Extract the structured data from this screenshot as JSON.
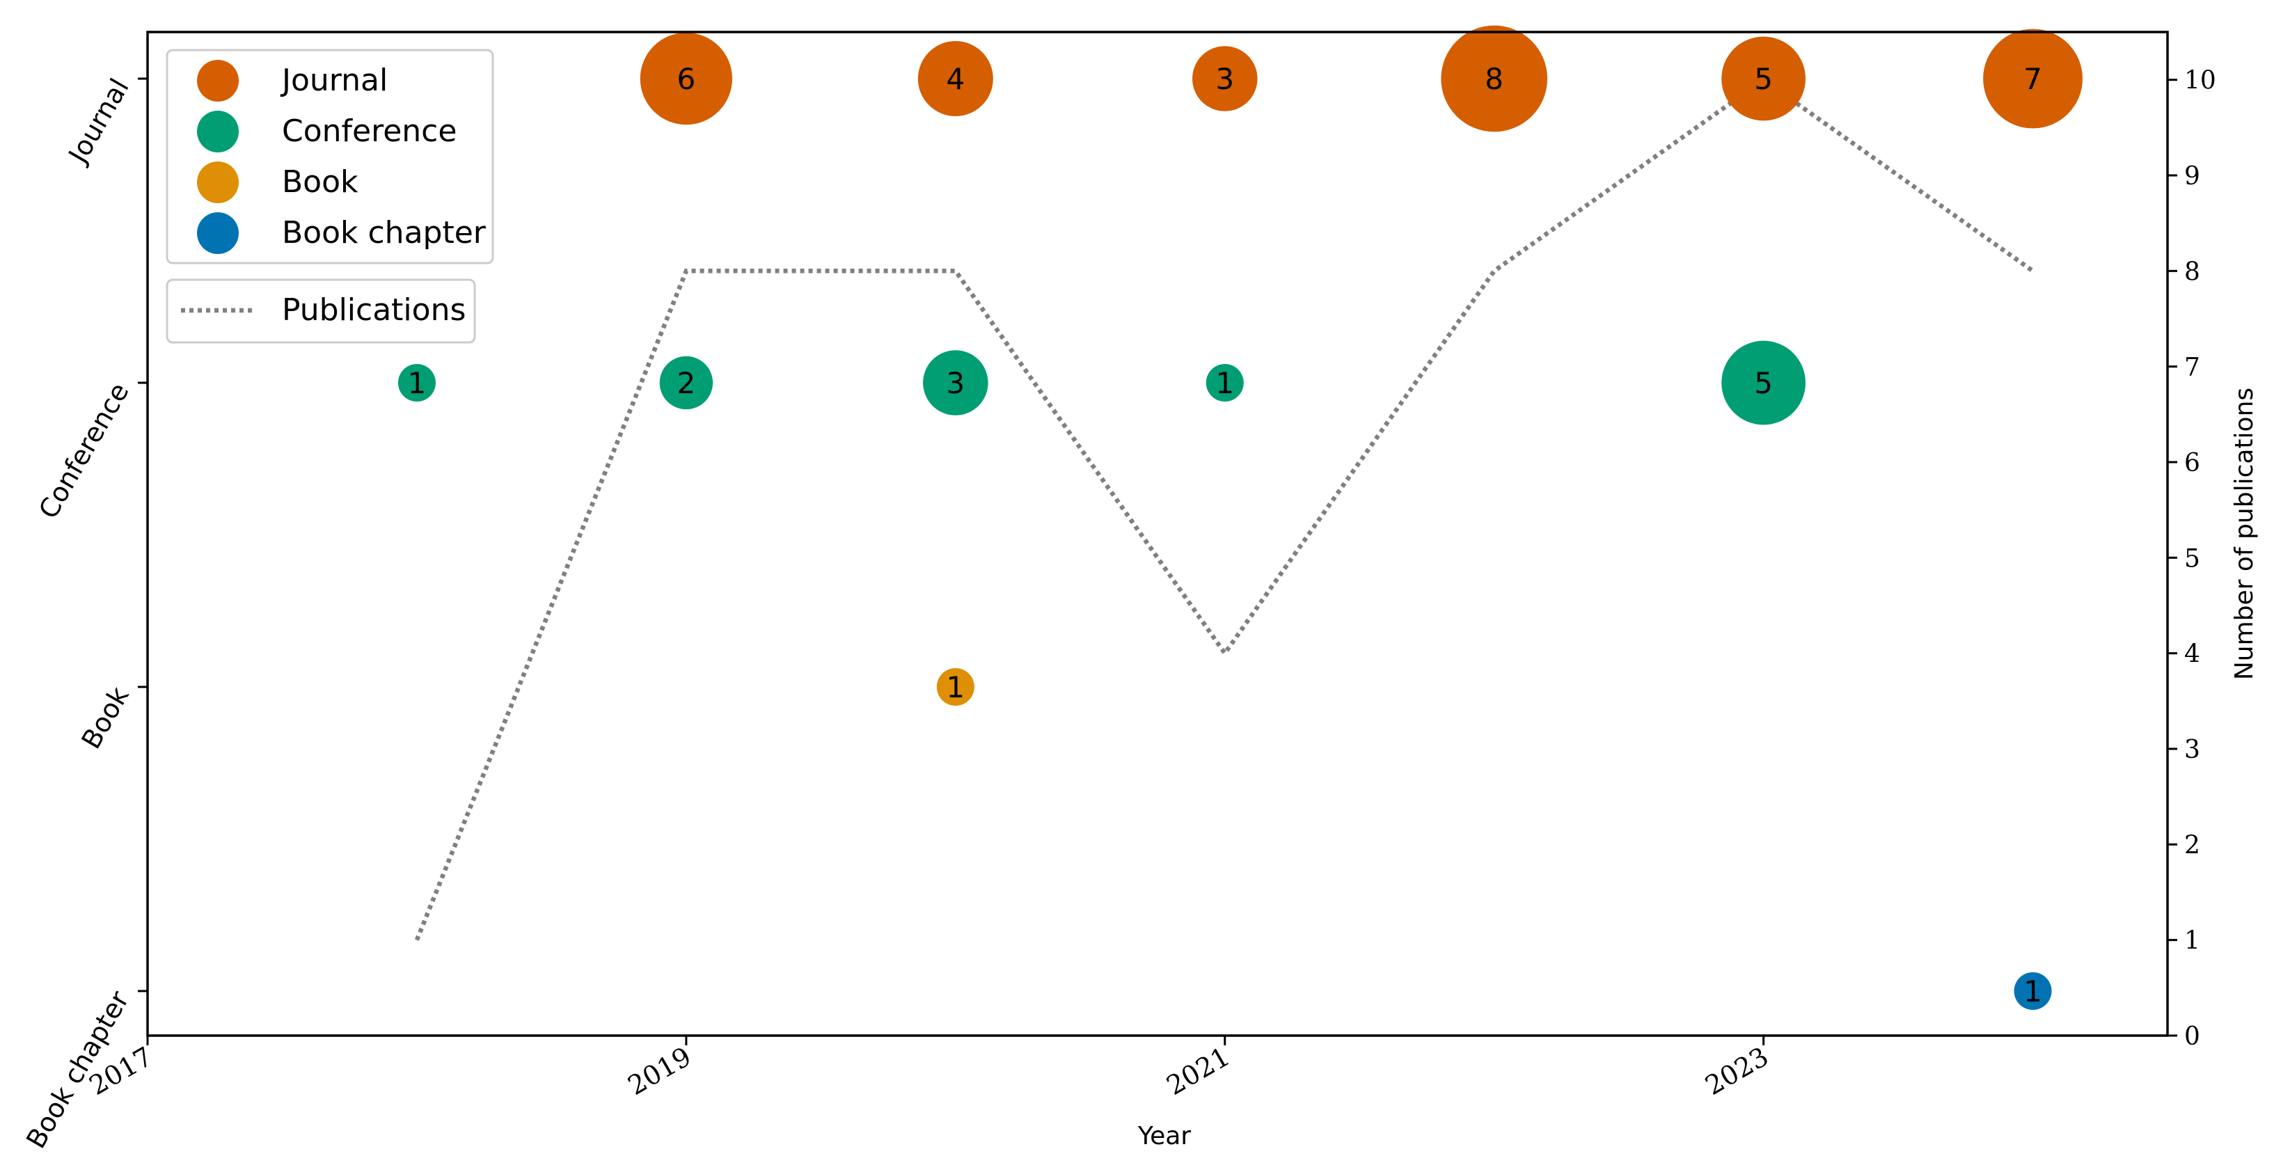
{
  "chart_data": {
    "type": "scatter",
    "x_axis": {
      "label": "Year",
      "range": [
        2017,
        2024.5
      ],
      "ticks": [
        2017,
        2019,
        2021,
        2023
      ],
      "tick_labels": [
        "2017",
        "2019",
        "2021",
        "2023"
      ]
    },
    "y_axis_left": {
      "categories": [
        "Book chapter",
        "Book",
        "Conference",
        "Journal"
      ]
    },
    "y_axis_right": {
      "label": "Number of publications",
      "range": [
        0,
        10.5
      ],
      "ticks": [
        0,
        1,
        2,
        3,
        4,
        5,
        6,
        7,
        8,
        9,
        10
      ],
      "tick_labels": [
        "0",
        "1",
        "2",
        "3",
        "4",
        "5",
        "6",
        "7",
        "8",
        "9",
        "10"
      ]
    },
    "series": [
      {
        "name": "Journal",
        "category": "Journal",
        "color": "#d55e00",
        "points": [
          {
            "x": 2019,
            "count": 6
          },
          {
            "x": 2020,
            "count": 4
          },
          {
            "x": 2021,
            "count": 3
          },
          {
            "x": 2022,
            "count": 8
          },
          {
            "x": 2023,
            "count": 5
          },
          {
            "x": 2024,
            "count": 7
          }
        ]
      },
      {
        "name": "Conference",
        "category": "Conference",
        "color": "#029e73",
        "points": [
          {
            "x": 2018,
            "count": 1
          },
          {
            "x": 2019,
            "count": 2
          },
          {
            "x": 2020,
            "count": 3
          },
          {
            "x": 2021,
            "count": 1
          },
          {
            "x": 2023,
            "count": 5
          }
        ]
      },
      {
        "name": "Book",
        "category": "Book",
        "color": "#de8f05",
        "points": [
          {
            "x": 2020,
            "count": 1
          }
        ]
      },
      {
        "name": "Book chapter",
        "category": "Book chapter",
        "color": "#0173b2",
        "points": [
          {
            "x": 2024,
            "count": 1
          }
        ]
      }
    ],
    "line_series": {
      "name": "Publications",
      "style": "dotted",
      "color": "#808080",
      "x": [
        2018,
        2019,
        2020,
        2021,
        2022,
        2023,
        2024
      ],
      "y": [
        1,
        8,
        8,
        4,
        8,
        10,
        8
      ]
    },
    "legend": {
      "placement": "top-left",
      "scatter_entries": [
        "Journal",
        "Conference",
        "Book",
        "Book chapter"
      ],
      "line_entries": [
        "Publications"
      ]
    },
    "grid": false
  }
}
